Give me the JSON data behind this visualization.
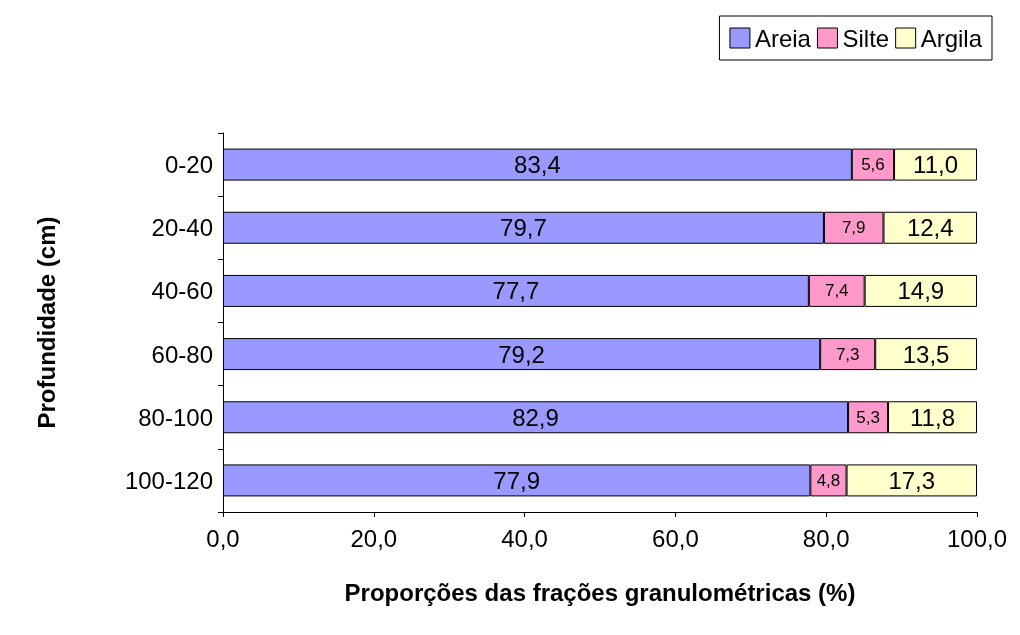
{
  "chart_data": {
    "type": "bar",
    "orientation": "horizontal",
    "stacked": true,
    "xlabel": "Proporções das frações granulométricas (%)",
    "ylabel": "Profundidade (cm)",
    "categories": [
      "0-20",
      "20-40",
      "40-60",
      "60-80",
      "80-100",
      "100-120"
    ],
    "series": [
      {
        "name": "Areia",
        "color": "#9999ff",
        "values": [
          83.4,
          79.7,
          77.7,
          79.2,
          82.9,
          77.9
        ],
        "value_labels": [
          "83,4",
          "79,7",
          "77,7",
          "79,2",
          "82,9",
          "77,9"
        ]
      },
      {
        "name": "Silte",
        "color": "#ff99cc",
        "values": [
          5.6,
          7.9,
          7.4,
          7.3,
          5.3,
          4.8
        ],
        "value_labels": [
          "5,6",
          "7,9",
          "7,4",
          "7,3",
          "5,3",
          "4,8"
        ]
      },
      {
        "name": "Argila",
        "color": "#ffffcc",
        "values": [
          11.0,
          12.4,
          14.9,
          13.5,
          11.8,
          17.3
        ],
        "value_labels": [
          "11,0",
          "12,4",
          "14,9",
          "13,5",
          "11,8",
          "17,3"
        ]
      }
    ],
    "xlim": [
      0,
      100
    ],
    "xticks": [
      {
        "value": 0,
        "label": "0,0"
      },
      {
        "value": 20,
        "label": "20,0"
      },
      {
        "value": 40,
        "label": "40,0"
      },
      {
        "value": 60,
        "label": "60,0"
      },
      {
        "value": 80,
        "label": "80,0"
      },
      {
        "value": 100,
        "label": "100,0"
      }
    ],
    "legend": "top right"
  }
}
